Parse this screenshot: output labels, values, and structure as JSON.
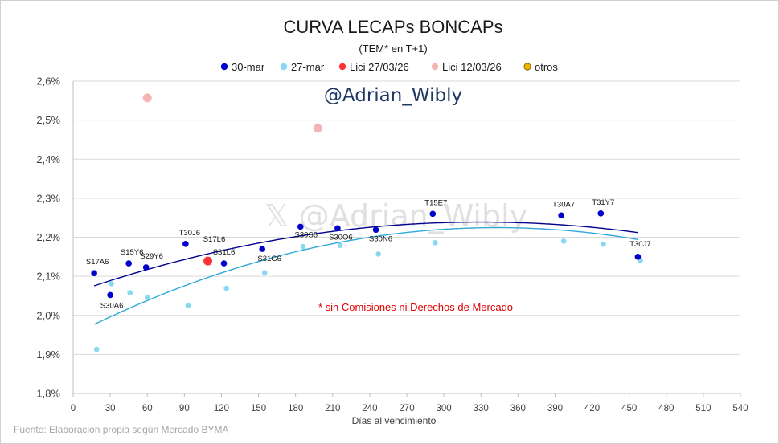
{
  "chart_data": {
    "type": "scatter",
    "title": "CURVA LECAPs BONCAPs",
    "subtitle": "(TEM* en T+1)",
    "xlabel": "Días al vencimiento",
    "ylabel": "",
    "xlim": [
      0,
      540
    ],
    "ylim": [
      1.8,
      2.6
    ],
    "x_ticks": [
      0,
      30,
      60,
      90,
      120,
      150,
      180,
      210,
      240,
      270,
      300,
      330,
      360,
      390,
      420,
      450,
      480,
      510,
      540
    ],
    "y_ticks": [
      {
        "value": 1.8,
        "label": "1,8%"
      },
      {
        "value": 1.9,
        "label": "1,9%"
      },
      {
        "value": 2.0,
        "label": "2,0%"
      },
      {
        "value": 2.1,
        "label": "2,1%"
      },
      {
        "value": 2.2,
        "label": "2,2%"
      },
      {
        "value": 2.3,
        "label": "2,3%"
      },
      {
        "value": 2.4,
        "label": "2,4%"
      },
      {
        "value": 2.5,
        "label": "2,5%"
      },
      {
        "value": 2.6,
        "label": "2,6%"
      }
    ],
    "legend_position": "top",
    "series": [
      {
        "name": "30-mar",
        "color": "#0000cc",
        "points": [
          {
            "x": 17,
            "y": 2.108,
            "label": "S17A6"
          },
          {
            "x": 30,
            "y": 2.052,
            "label": "S30A6"
          },
          {
            "x": 45,
            "y": 2.133,
            "label": "S15Y6"
          },
          {
            "x": 59,
            "y": 2.123,
            "label": "S29Y6"
          },
          {
            "x": 91,
            "y": 2.183,
            "label": "T30J6"
          },
          {
            "x": 122,
            "y": 2.133,
            "label": "S31L6"
          },
          {
            "x": 153,
            "y": 2.17,
            "label": "S31G6"
          },
          {
            "x": 184,
            "y": 2.227,
            "label": "S30S6"
          },
          {
            "x": 214,
            "y": 2.223,
            "label": "S30O6"
          },
          {
            "x": 245,
            "y": 2.219,
            "label": "S30N6"
          },
          {
            "x": 291,
            "y": 2.26,
            "label": "T15E7"
          },
          {
            "x": 395,
            "y": 2.256,
            "label": "T30A7"
          },
          {
            "x": 427,
            "y": 2.261,
            "label": "T31Y7"
          },
          {
            "x": 457,
            "y": 2.15,
            "label": "T30J7"
          }
        ]
      },
      {
        "name": "27-mar",
        "color": "#87d8f2",
        "points": [
          {
            "x": 19,
            "y": 1.913
          },
          {
            "x": 31,
            "y": 2.081
          },
          {
            "x": 46,
            "y": 2.058
          },
          {
            "x": 60,
            "y": 2.046
          },
          {
            "x": 93,
            "y": 2.025
          },
          {
            "x": 124,
            "y": 2.069
          },
          {
            "x": 155,
            "y": 2.109
          },
          {
            "x": 186,
            "y": 2.176
          },
          {
            "x": 216,
            "y": 2.179
          },
          {
            "x": 247,
            "y": 2.157
          },
          {
            "x": 293,
            "y": 2.186
          },
          {
            "x": 397,
            "y": 2.19
          },
          {
            "x": 429,
            "y": 2.182
          },
          {
            "x": 459,
            "y": 2.14
          }
        ]
      },
      {
        "name": "Lici 27/03/26",
        "color": "#ff3333",
        "points": [
          {
            "x": 109,
            "y": 2.139,
            "label": "S17L6"
          }
        ]
      },
      {
        "name": "Lici 12/03/26",
        "color": "#f4b4b4",
        "points": [
          {
            "x": 60,
            "y": 2.557
          },
          {
            "x": 198,
            "y": 2.479
          }
        ]
      },
      {
        "name": "otros",
        "color": "#f0b400",
        "points": []
      }
    ],
    "trendlines": [
      {
        "series": "30-mar",
        "color": "#00008b",
        "x_range": [
          17,
          457
        ],
        "coef": [
          2.0574,
          0.0011,
          -1.6667e-06
        ]
      },
      {
        "series": "27-mar",
        "color": "#2fa8d8",
        "x_range": [
          17,
          457
        ],
        "coef": [
          1.9503,
          0.0016,
          -2.3333e-06
        ]
      }
    ],
    "annotations": {
      "handle": "@Adrian_Wibly",
      "watermark": "𝕏 @Adrian_Wibly",
      "note": "* sin Comisiones ni Derechos de Mercado",
      "source": "Fuente: Elaboración propia según Mercado BYMA"
    }
  }
}
